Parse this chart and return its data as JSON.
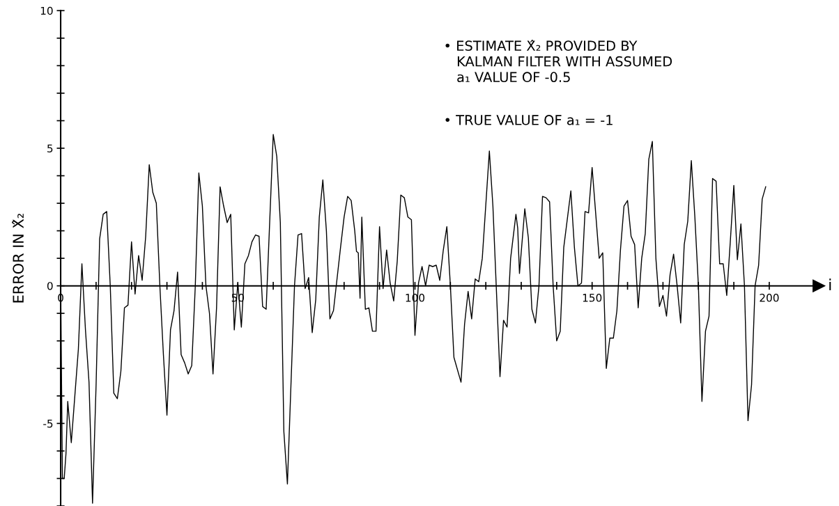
{
  "chart_data": {
    "type": "line",
    "xlabel": "i",
    "ylabel": "ERROR IN X̂₂",
    "annotations": [
      "• ESTIMATE X̂₂ PROVIDED BY\n   KALMAN FILTER WITH ASSUMED\n   a₁ VALUE OF -0.5",
      "• TRUE VALUE OF a₁ = -1"
    ],
    "series": [
      {
        "color": "#000000",
        "x": [
          0,
          0.5,
          1,
          1.5,
          2,
          3,
          4,
          5,
          6,
          7,
          8,
          9,
          10,
          11,
          12,
          13,
          14,
          15,
          16,
          17,
          18,
          19,
          20,
          21,
          22,
          23,
          24,
          25,
          26,
          27,
          28,
          29,
          30,
          31,
          32,
          33,
          34,
          35,
          36,
          37,
          38,
          39,
          40,
          41,
          42,
          43,
          44,
          45,
          46,
          47,
          48,
          49,
          50,
          51,
          52,
          53,
          54,
          55,
          56,
          57,
          58,
          60,
          61,
          62,
          63,
          64,
          65,
          66,
          67,
          68,
          69,
          70,
          71,
          72,
          73,
          74,
          75,
          76,
          77,
          79,
          80,
          81,
          82,
          83,
          83.5,
          84,
          84.5,
          85,
          86,
          87,
          88,
          89,
          90,
          91,
          92,
          93,
          94,
          95,
          96,
          97,
          98,
          99,
          100,
          101,
          102,
          103,
          104,
          105,
          106,
          107,
          108,
          109,
          110,
          111,
          113,
          114,
          115,
          116,
          117,
          118,
          119,
          121,
          122,
          124,
          125,
          126,
          127,
          128.5,
          129,
          129.5,
          131,
          132,
          133,
          134,
          135,
          136,
          137,
          138,
          139,
          140,
          141,
          142,
          144,
          145,
          146,
          147,
          148,
          149,
          150,
          152,
          153,
          154,
          155,
          156,
          157,
          158,
          159,
          160,
          161,
          162,
          163,
          164,
          165,
          166,
          167,
          168,
          169,
          170,
          171,
          172,
          173,
          174,
          175,
          176,
          177,
          178,
          179,
          180,
          181,
          182,
          183,
          184,
          185,
          186,
          187,
          188,
          189,
          190,
          191,
          192,
          193,
          194,
          195,
          196,
          197,
          198,
          199
        ],
        "values": [
          0,
          -7.0,
          -7.0,
          -6.1,
          -4.2,
          -5.7,
          -4.0,
          -2.3,
          0.8,
          -1.6,
          -3.5,
          -7.9,
          -3.6,
          1.7,
          2.6,
          2.7,
          0,
          -3.9,
          -4.1,
          -3.1,
          -0.8,
          -0.7,
          1.6,
          -0.3,
          1.1,
          0.2,
          1.8,
          4.4,
          3.4,
          3.0,
          0,
          -2.5,
          -4.7,
          -1.6,
          -0.9,
          0.5,
          -2.5,
          -2.8,
          -3.2,
          -2.9,
          0,
          4.1,
          2.9,
          0,
          -1.0,
          -3.2,
          -0.8,
          3.6,
          2.9,
          2.3,
          2.6,
          -1.6,
          0.1,
          -1.5,
          0.8,
          1.1,
          1.6,
          1.85,
          1.8,
          -0.75,
          -0.85,
          5.5,
          4.7,
          2.3,
          -5.3,
          -7.2,
          -3.6,
          0,
          1.85,
          1.9,
          -0.1,
          0.3,
          -1.7,
          -0.5,
          2.5,
          3.85,
          2.0,
          -1.2,
          -0.9,
          1.4,
          2.5,
          3.25,
          3.1,
          2.0,
          1.25,
          1.2,
          -0.45,
          2.5,
          -0.85,
          -0.8,
          -1.65,
          -1.65,
          2.15,
          -0.1,
          1.3,
          0.1,
          -0.55,
          0.9,
          3.3,
          3.2,
          2.5,
          2.4,
          -1.8,
          0.1,
          0.7,
          0,
          0.75,
          0.7,
          0.75,
          0.2,
          1.3,
          2.15,
          0,
          -2.6,
          -3.5,
          -1.4,
          -0.2,
          -1.2,
          0.25,
          0.15,
          1.0,
          4.9,
          2.9,
          -3.3,
          -1.25,
          -1.5,
          1.0,
          2.6,
          2.1,
          0.45,
          2.8,
          1.75,
          -0.85,
          -1.35,
          0,
          3.25,
          3.2,
          3.05,
          0,
          -2.0,
          -1.65,
          1.4,
          3.45,
          1.4,
          0,
          0.1,
          2.7,
          2.65,
          4.3,
          1.0,
          1.2,
          -3.0,
          -1.9,
          -1.9,
          -0.9,
          1.3,
          2.9,
          3.1,
          1.8,
          1.5,
          -0.8,
          1.0,
          1.9,
          4.6,
          5.25,
          1.0,
          -0.75,
          -0.35,
          -1.1,
          0.4,
          1.15,
          0,
          -1.35,
          1.5,
          2.35,
          4.55,
          2.5,
          0,
          -4.2,
          -1.65,
          -1.1,
          3.9,
          3.8,
          0.8,
          0.8,
          -0.35,
          1.6,
          3.65,
          0.95,
          2.25,
          0,
          -4.9,
          -3.6,
          0,
          0.75,
          3.15,
          3.6
        ]
      }
    ],
    "xlim": [
      0,
      214
    ],
    "ylim": [
      -8,
      10
    ],
    "xticks": [
      0,
      {
        "value": 10,
        "label": null
      },
      {
        "value": 20,
        "label": null
      },
      {
        "value": 30,
        "label": null
      },
      {
        "value": 40,
        "label": null
      },
      50,
      {
        "value": 60,
        "label": null
      },
      {
        "value": 70,
        "label": null
      },
      {
        "value": 80,
        "label": null
      },
      {
        "value": 90,
        "label": null
      },
      100,
      {
        "value": 110,
        "label": null
      },
      {
        "value": 120,
        "label": null
      },
      {
        "value": 130,
        "label": null
      },
      {
        "value": 140,
        "label": null
      },
      150,
      {
        "value": 160,
        "label": null
      },
      {
        "value": 170,
        "label": null
      },
      {
        "value": 180,
        "label": null
      },
      {
        "value": 190,
        "label": null
      },
      200
    ],
    "yticks": [
      {
        "value": -8,
        "label": null
      },
      {
        "value": -7,
        "label": null
      },
      {
        "value": -6,
        "label": null
      },
      -5,
      {
        "value": -4,
        "label": null
      },
      {
        "value": -3,
        "label": null
      },
      {
        "value": -2,
        "label": null
      },
      {
        "value": -1,
        "label": null
      },
      0,
      {
        "value": 1,
        "label": null
      },
      {
        "value": 2,
        "label": null
      },
      {
        "value": 3,
        "label": null
      },
      {
        "value": 4,
        "label": null
      },
      5,
      {
        "value": 6,
        "label": null
      },
      {
        "value": 7,
        "label": null
      },
      {
        "value": 8,
        "label": null
      },
      {
        "value": 9,
        "label": null
      },
      10
    ],
    "grid": false,
    "legend": false,
    "marker": "none",
    "line_style": "solid"
  }
}
